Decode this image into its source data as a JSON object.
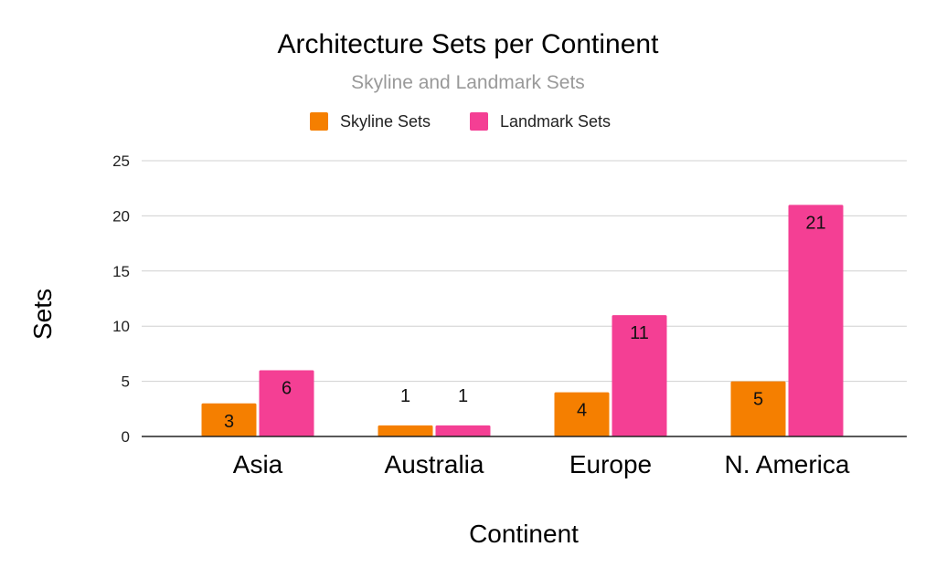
{
  "chart_data": {
    "type": "bar",
    "title": "Architecture Sets per Continent",
    "subtitle": "Skyline and Landmark Sets",
    "xlabel": "Continent",
    "ylabel": "Sets",
    "categories": [
      "Asia",
      "Australia",
      "Europe",
      "N. America"
    ],
    "series": [
      {
        "name": "Skyline Sets",
        "color": "#F57F00",
        "values": [
          3,
          1,
          4,
          5
        ]
      },
      {
        "name": "Landmark Sets",
        "color": "#F43F94",
        "values": [
          6,
          1,
          11,
          21
        ]
      }
    ],
    "ylim": [
      0,
      25
    ],
    "yticks": [
      0,
      5,
      10,
      15,
      20,
      25
    ],
    "grid": true,
    "legend_position": "top"
  }
}
